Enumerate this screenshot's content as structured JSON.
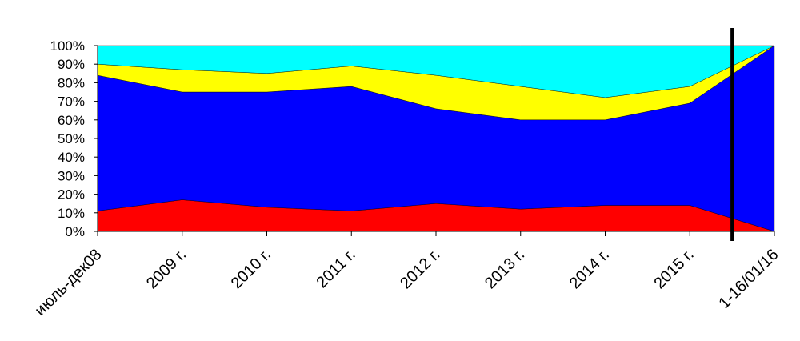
{
  "chart_data": {
    "type": "stacked_area_percent",
    "categories": [
      "июль-дек08",
      "2009 г.",
      "2010 г.",
      "2011 г.",
      "2012 г.",
      "2013 г.",
      "2014 г.",
      "2015 г.",
      "1-16/01/16"
    ],
    "series": [
      {
        "color": "#ff0000",
        "values": [
          11,
          17,
          13,
          11,
          15,
          12,
          14,
          14,
          0
        ]
      },
      {
        "color": "#0000ff",
        "values": [
          73,
          58,
          62,
          67,
          51,
          48,
          46,
          55,
          100
        ]
      },
      {
        "color": "#ffff00",
        "values": [
          6,
          12,
          10,
          11,
          18,
          18,
          12,
          9,
          0
        ]
      },
      {
        "color": "#00ffff",
        "values": [
          10,
          13,
          15,
          11,
          16,
          22,
          28,
          22,
          0
        ]
      }
    ],
    "ylim": [
      0,
      100
    ],
    "yticks": [
      {
        "value": 0,
        "label": "0%"
      },
      {
        "value": 10,
        "label": "10%"
      },
      {
        "value": 20,
        "label": "20%"
      },
      {
        "value": 30,
        "label": "30%"
      },
      {
        "value": 40,
        "label": "40%"
      },
      {
        "value": 50,
        "label": "50%"
      },
      {
        "value": 60,
        "label": "60%"
      },
      {
        "value": 70,
        "label": "70%"
      },
      {
        "value": 80,
        "label": "80%"
      },
      {
        "value": 90,
        "label": "90%"
      },
      {
        "value": 100,
        "label": "100%"
      }
    ],
    "reference_line": 11,
    "grid": false
  }
}
